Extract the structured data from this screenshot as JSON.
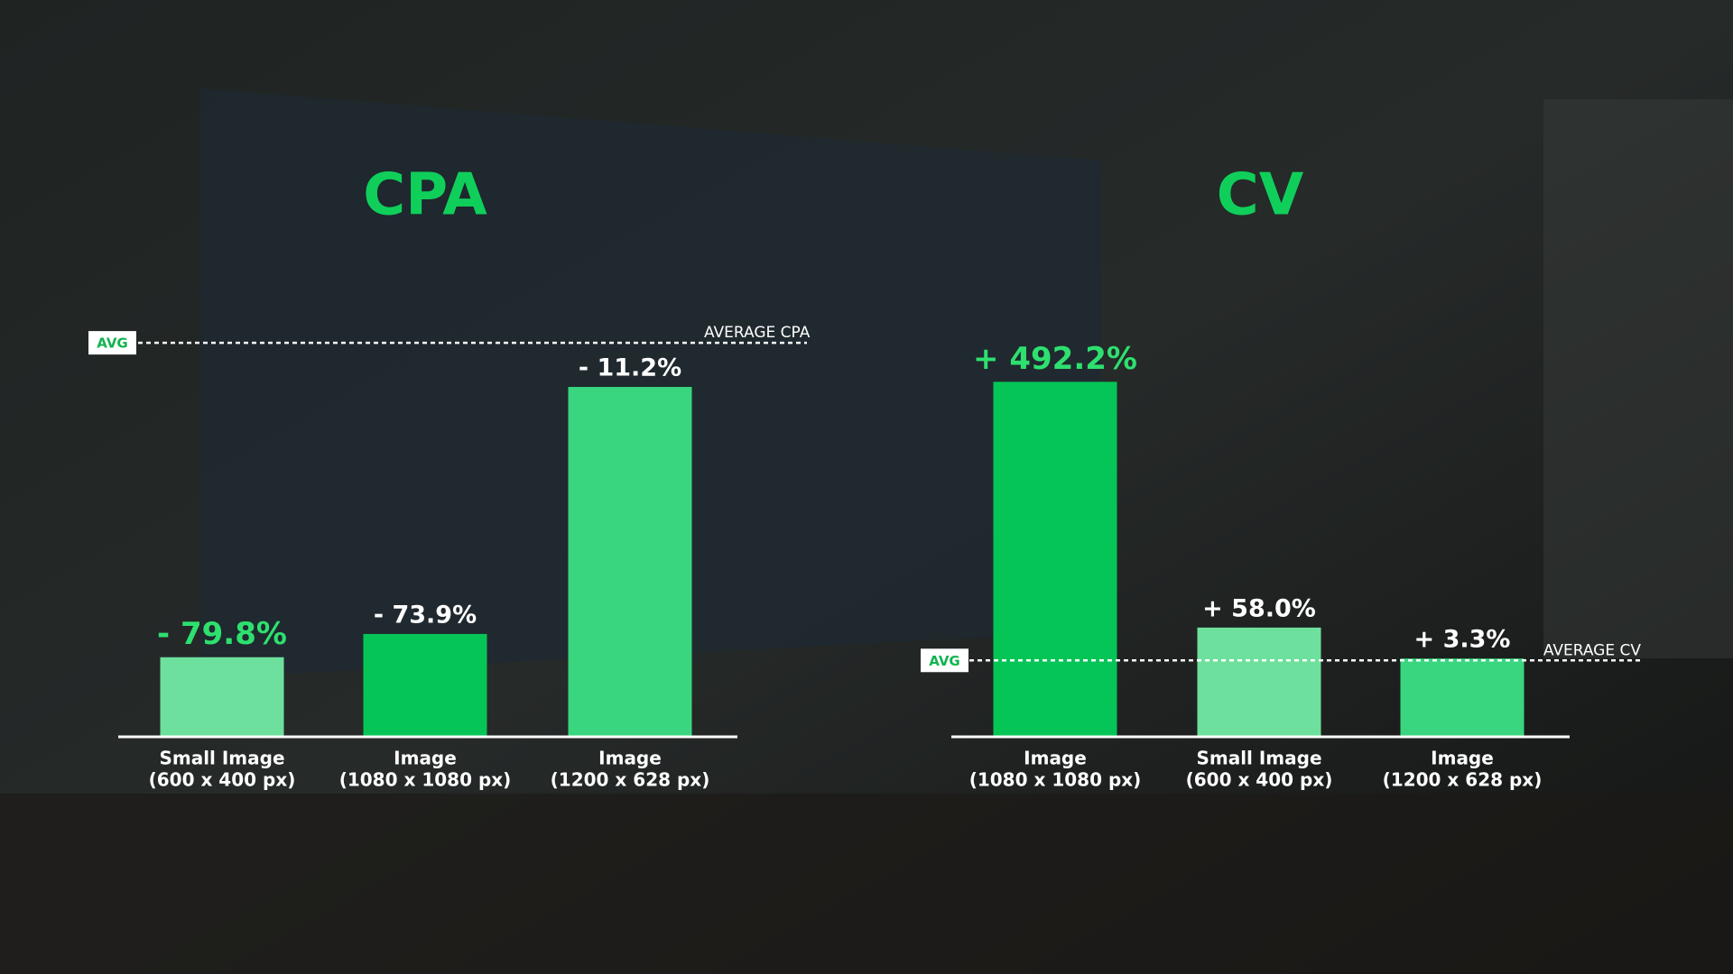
{
  "chart_data": [
    {
      "type": "bar",
      "title": "CPA",
      "categories": [
        [
          "Small Image",
          "(600 x 400 px)"
        ],
        [
          "Image",
          "(1080 x 1080 px)"
        ],
        [
          "Image",
          "(1200 x 628 px)"
        ]
      ],
      "values": [
        -79.8,
        -73.9,
        -11.2
      ],
      "value_labels": [
        "- 79.8%",
        "- 73.9%",
        "- 11.2%"
      ],
      "colors": [
        "#6ee09d",
        "#06c557",
        "#3ad67f"
      ],
      "label_colors": [
        "#2ee06f",
        "#ffffff",
        "#ffffff"
      ],
      "ylim": [
        -100,
        3
      ],
      "reference_line": {
        "value": 0,
        "tag": "AVG",
        "label": "AVERAGE CPA"
      }
    },
    {
      "type": "bar",
      "title": "CV",
      "categories": [
        [
          "Image",
          "(1080 x 1080 px)"
        ],
        [
          "Small Image",
          "(600 x 400 px)"
        ],
        [
          "Image",
          "(1200 x 628 px)"
        ]
      ],
      "values": [
        492.2,
        58.0,
        3.3
      ],
      "value_labels": [
        "+ 492.2%",
        "+ 58.0%",
        "+ 3.3%"
      ],
      "colors": [
        "#06c557",
        "#6ee09d",
        "#3ad67f"
      ],
      "label_colors": [
        "#2ee06f",
        "#ffffff",
        "#ffffff"
      ],
      "ylim": [
        -135,
        582
      ],
      "reference_line": {
        "value": 0,
        "tag": "AVG",
        "label": "AVERAGE CV"
      }
    }
  ]
}
